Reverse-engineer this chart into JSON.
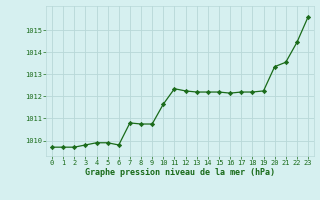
{
  "x": [
    0,
    1,
    2,
    3,
    4,
    5,
    6,
    7,
    8,
    9,
    10,
    11,
    12,
    13,
    14,
    15,
    16,
    17,
    18,
    19,
    20,
    21,
    22,
    23
  ],
  "y": [
    1009.7,
    1009.7,
    1009.7,
    1009.8,
    1009.9,
    1009.9,
    1009.8,
    1010.8,
    1010.75,
    1010.75,
    1011.65,
    1012.35,
    1012.25,
    1012.2,
    1012.2,
    1012.2,
    1012.15,
    1012.2,
    1012.2,
    1012.25,
    1013.35,
    1013.55,
    1014.45,
    1015.6
  ],
  "line_color": "#1a6b1a",
  "marker": "D",
  "marker_size": 2.2,
  "bg_color": "#d6f0f0",
  "grid_color": "#b8d8d8",
  "xlabel": "Graphe pression niveau de la mer (hPa)",
  "xlabel_color": "#1a6b1a",
  "tick_color": "#1a6b1a",
  "ylim_min": 1009.3,
  "ylim_max": 1016.1,
  "yticks": [
    1010,
    1011,
    1012,
    1013,
    1014,
    1015
  ],
  "xticks": [
    0,
    1,
    2,
    3,
    4,
    5,
    6,
    7,
    8,
    9,
    10,
    11,
    12,
    13,
    14,
    15,
    16,
    17,
    18,
    19,
    20,
    21,
    22,
    23
  ]
}
